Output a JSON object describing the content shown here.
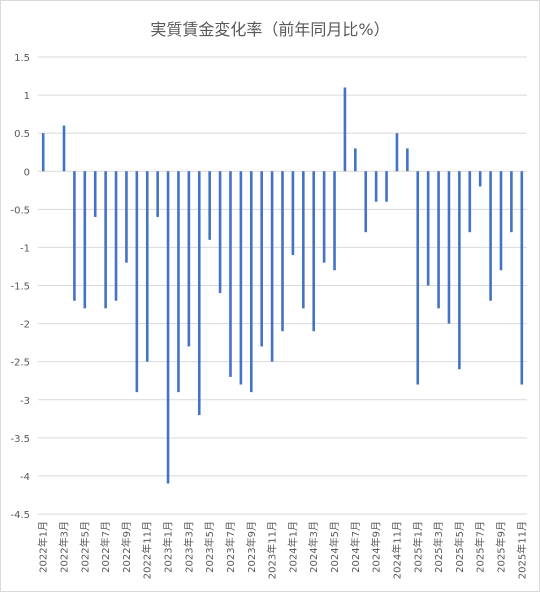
{
  "chart_data": {
    "type": "bar",
    "title": "実質賃金変化率（前年同月比%）",
    "xlabel": "",
    "ylabel": "",
    "ylim": [
      -4.5,
      1.5
    ],
    "yticks": [
      "1.5",
      "1",
      "0.5",
      "0",
      "-0.5",
      "-1",
      "-1.5",
      "-2",
      "-2.5",
      "-3",
      "-3.5",
      "-4",
      "-4.5"
    ],
    "grid": true,
    "legend": "none",
    "bar_color": "#4472c4",
    "categories": [
      "2022年1月",
      "2022年2月",
      "2022年3月",
      "2022年4月",
      "2022年5月",
      "2022年6月",
      "2022年7月",
      "2022年8月",
      "2022年9月",
      "2022年10月",
      "2022年11月",
      "2022年12月",
      "2023年1月",
      "2023年2月",
      "2023年3月",
      "2023年4月",
      "2023年5月",
      "2023年6月",
      "2023年7月",
      "2023年8月",
      "2023年9月",
      "2023年10月",
      "2023年11月",
      "2023年12月",
      "2024年1月",
      "2024年2月",
      "2024年3月",
      "2024年4月",
      "2024年5月",
      "2024年6月",
      "2024年7月",
      "2024年8月",
      "2024年9月",
      "2024年10月",
      "2024年11月",
      "2024年12月",
      "2025年1月",
      "2025年2月",
      "2025年3月",
      "2025年4月",
      "2025年5月",
      "2025年6月",
      "2025年7月",
      "2025年8月",
      "2025年9月",
      "2025年10月",
      "2025年11月"
    ],
    "shown_category_labels": [
      "2022年1月",
      "2022年3月",
      "2022年5月",
      "2022年7月",
      "2022年9月",
      "2022年11月",
      "2023年1月",
      "2023年3月",
      "2023年5月",
      "2023年7月",
      "2023年9月",
      "2023年11月",
      "2024年1月",
      "2024年3月",
      "2024年5月",
      "2024年7月",
      "2024年9月",
      "2024年11月",
      "2025年1月",
      "2025年3月",
      "2025年5月",
      "2025年7月",
      "2025年9月",
      "2025年11月"
    ],
    "values": [
      0.5,
      0,
      0.6,
      -1.7,
      -1.8,
      -0.6,
      -1.8,
      -1.7,
      -1.2,
      -2.9,
      -2.5,
      -0.6,
      -4.1,
      -2.9,
      -2.3,
      -3.2,
      -0.9,
      -1.6,
      -2.7,
      -2.8,
      -2.9,
      -2.3,
      -2.5,
      -2.1,
      -1.1,
      -1.8,
      -2.1,
      -1.2,
      -1.3,
      1.1,
      0.3,
      -0.8,
      -0.4,
      -0.4,
      0.5,
      0.3,
      -2.8,
      -1.5,
      -1.8,
      -2.0,
      -2.6,
      -0.8,
      -0.2,
      -1.7,
      -1.3,
      -0.8,
      -2.8
    ]
  }
}
